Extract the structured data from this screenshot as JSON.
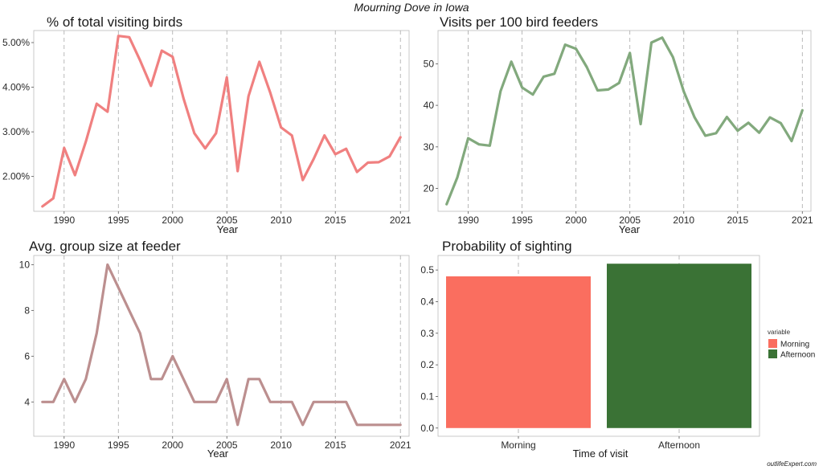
{
  "page": {
    "title": "Mourning Dove in Iowa",
    "watermark": "outlifeExpert.com"
  },
  "chart_data": [
    {
      "type": "line",
      "title": "% of total visiting birds",
      "xlabel": "Year",
      "ylabel": "",
      "x_ticks": [
        1990,
        1995,
        2000,
        2005,
        2010,
        2015,
        2021
      ],
      "y_ticks": [
        0.02,
        0.03,
        0.04,
        0.05
      ],
      "y_tick_labels": [
        "2.00%",
        "3.00%",
        "4.00%",
        "5.00%"
      ],
      "xlim": [
        1987.2,
        2021.8
      ],
      "ylim": [
        0.0122,
        0.0527
      ],
      "color": "#f08080",
      "grid": "vertical dashed",
      "x": [
        1988,
        1989,
        1990,
        1991,
        1992,
        1993,
        1994,
        1995,
        1996,
        1997,
        1998,
        1999,
        2000,
        2001,
        2002,
        2003,
        2004,
        2005,
        2006,
        2007,
        2008,
        2009,
        2010,
        2011,
        2012,
        2013,
        2014,
        2015,
        2016,
        2017,
        2018,
        2019,
        2020,
        2021
      ],
      "values": [
        0.0133,
        0.0151,
        0.0264,
        0.0203,
        0.0278,
        0.0363,
        0.0345,
        0.0515,
        0.0512,
        0.046,
        0.0403,
        0.0482,
        0.0468,
        0.0375,
        0.0297,
        0.0263,
        0.0297,
        0.0422,
        0.0212,
        0.038,
        0.0457,
        0.0388,
        0.031,
        0.0292,
        0.0192,
        0.0239,
        0.0292,
        0.025,
        0.0262,
        0.021,
        0.0231,
        0.0232,
        0.0245,
        0.0288
      ]
    },
    {
      "type": "line",
      "title": "Visits per 100 bird feeders",
      "xlabel": "Year",
      "ylabel": "",
      "x_ticks": [
        1990,
        1995,
        2000,
        2005,
        2010,
        2015,
        2021
      ],
      "y_ticks": [
        20,
        30,
        40,
        50
      ],
      "y_tick_labels": [
        "20",
        "30",
        "40",
        "50"
      ],
      "xlim": [
        1987.2,
        2021.8
      ],
      "ylim": [
        14.5,
        58.0
      ],
      "color": "#82a97d",
      "grid": "vertical dashed",
      "x": [
        1988,
        1989,
        1990,
        1991,
        1992,
        1993,
        1994,
        1995,
        1996,
        1997,
        1998,
        1999,
        2000,
        2001,
        2002,
        2003,
        2004,
        2005,
        2006,
        2007,
        2008,
        2009,
        2010,
        2011,
        2012,
        2013,
        2014,
        2015,
        2016,
        2017,
        2018,
        2019,
        2020,
        2021
      ],
      "values": [
        16.2,
        22.7,
        32.1,
        30.6,
        30.3,
        43.4,
        50.5,
        44.3,
        42.6,
        46.9,
        47.6,
        54.6,
        53.6,
        49.2,
        43.6,
        43.8,
        45.4,
        52.6,
        35.5,
        55.1,
        56.3,
        51.6,
        43.3,
        37.1,
        32.7,
        33.3,
        37.2,
        33.9,
        35.8,
        33.4,
        37.1,
        35.7,
        31.4,
        38.8
      ]
    },
    {
      "type": "line",
      "title": "Avg. group size at feeder",
      "xlabel": "Year",
      "ylabel": "",
      "x_ticks": [
        1990,
        1995,
        2000,
        2005,
        2010,
        2015,
        2021
      ],
      "y_ticks": [
        4,
        6,
        8,
        10
      ],
      "y_tick_labels": [
        "4",
        "6",
        "8",
        "10"
      ],
      "xlim": [
        1987.2,
        2021.8
      ],
      "ylim": [
        2.5,
        10.4
      ],
      "color": "#bc8f8f",
      "grid": "vertical dashed",
      "x": [
        1988,
        1989,
        1990,
        1991,
        1992,
        1993,
        1994,
        1995,
        1996,
        1997,
        1998,
        1999,
        2000,
        2001,
        2002,
        2003,
        2004,
        2005,
        2006,
        2007,
        2008,
        2009,
        2010,
        2011,
        2012,
        2013,
        2014,
        2015,
        2016,
        2017,
        2018,
        2019,
        2020,
        2021
      ],
      "values": [
        4,
        4,
        5,
        4,
        5,
        7,
        10,
        9,
        8,
        7,
        5,
        5,
        6,
        5,
        4,
        4,
        4,
        5,
        3,
        5,
        5,
        4,
        4,
        4,
        3,
        4,
        4,
        4,
        4,
        3,
        3,
        3,
        3,
        3
      ]
    },
    {
      "type": "bar",
      "title": "Probability of sighting",
      "xlabel": "Time of visit",
      "ylabel": "",
      "categories": [
        "Morning",
        "Afternoon"
      ],
      "values": [
        0.48,
        0.52
      ],
      "colors": [
        "#fa6e5f",
        "#3a7235"
      ],
      "y_ticks": [
        0.0,
        0.1,
        0.2,
        0.3,
        0.4,
        0.5
      ],
      "y_tick_labels": [
        "0.0",
        "0.1",
        "0.2",
        "0.3",
        "0.4",
        "0.5"
      ],
      "ylim": [
        -0.026,
        0.546
      ],
      "grid": "vertical dashed",
      "legend": {
        "title": "variable",
        "entries": [
          "Morning",
          "Afternoon"
        ],
        "position": "right"
      }
    }
  ]
}
